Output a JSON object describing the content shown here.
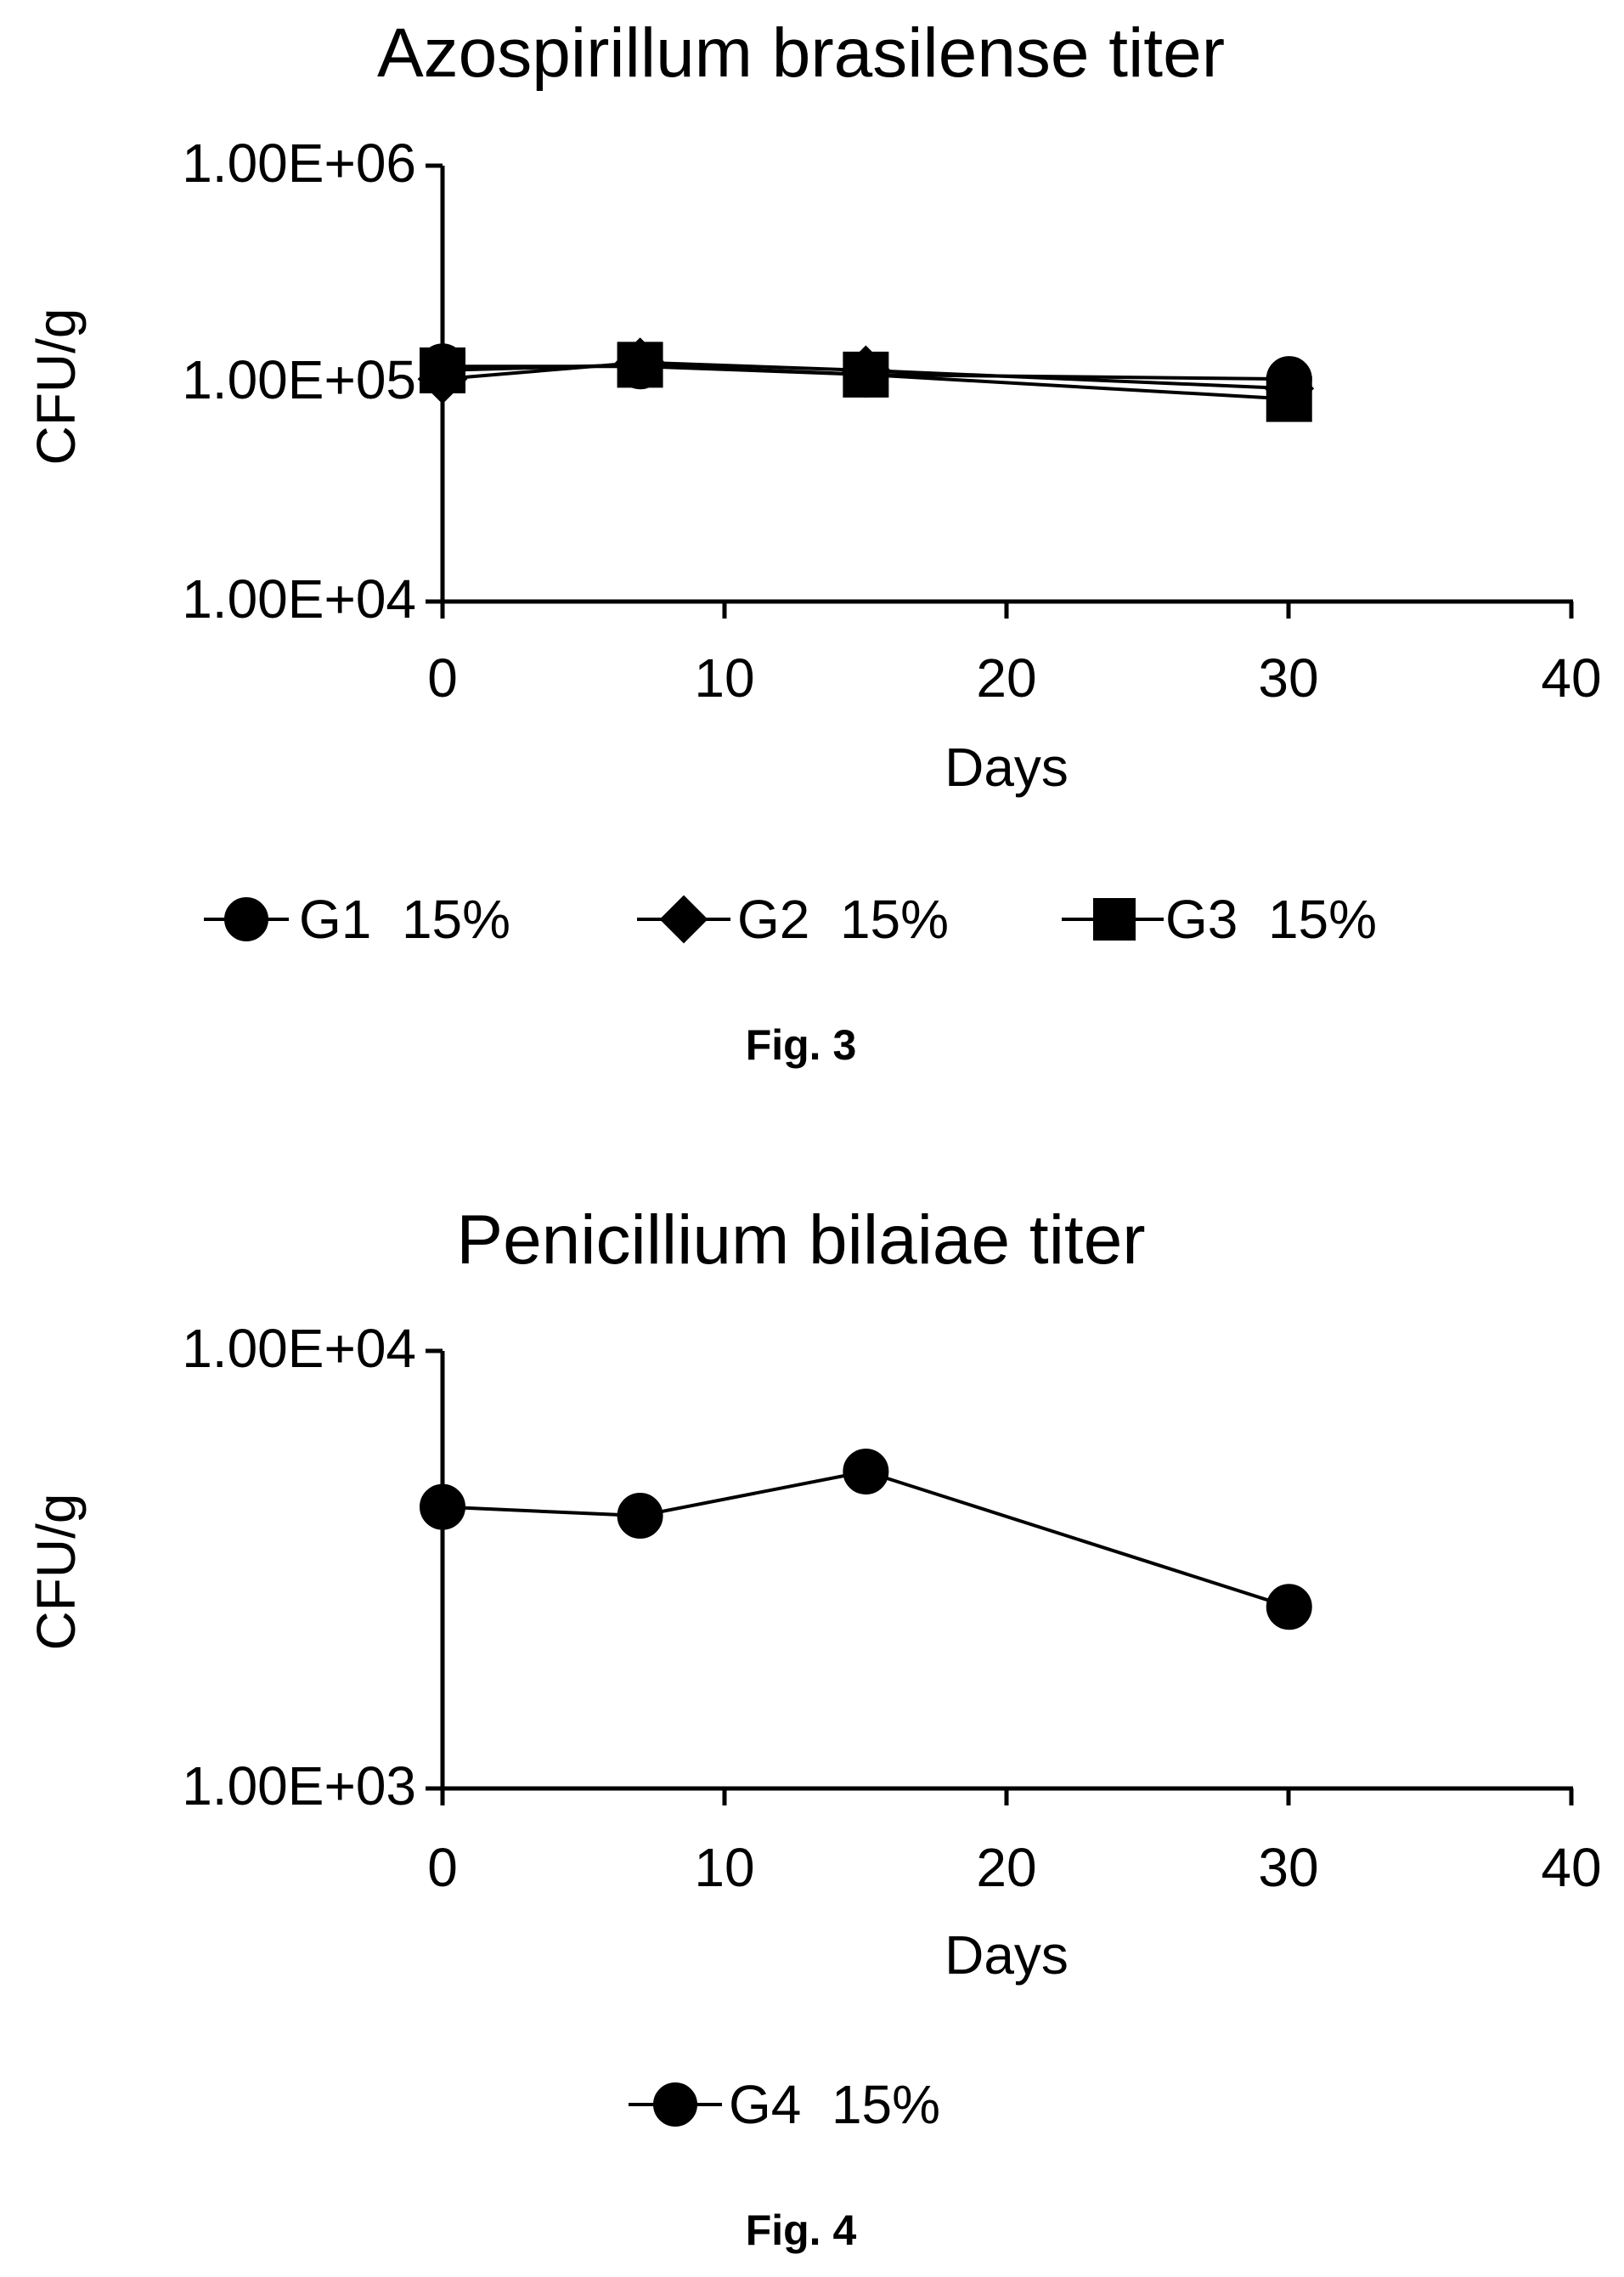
{
  "chart_data": [
    {
      "type": "line",
      "title": "Azospirillum brasilense titer",
      "xlabel": "Days",
      "ylabel": "CFU/g",
      "xlim": [
        0,
        40
      ],
      "x_ticks": [
        "0",
        "10",
        "20",
        "30",
        "40"
      ],
      "ylim": [
        10000,
        1000000
      ],
      "y_scale": "log",
      "y_ticks": [
        "1.00E+04",
        "1.00E+05",
        "1.00E+06"
      ],
      "grid": false,
      "legend_position": "bottom",
      "caption": "Fig. 3",
      "series": [
        {
          "name": "G1  15%",
          "marker": "circle",
          "x": [
            0,
            7,
            15,
            30
          ],
          "y": [
            120000,
            120000,
            110000,
            105000
          ]
        },
        {
          "name": "G2  15%",
          "marker": "diamond",
          "x": [
            0,
            7,
            15,
            30
          ],
          "y": [
            105000,
            125000,
            115000,
            95000
          ]
        },
        {
          "name": "G3  15%",
          "marker": "square",
          "x": [
            0,
            7,
            15,
            30
          ],
          "y": [
            115000,
            122000,
            110000,
            85000
          ]
        }
      ]
    },
    {
      "type": "line",
      "title": "Penicillium bilaiae titer",
      "xlabel": "Days",
      "ylabel": "CFU/g",
      "xlim": [
        0,
        40
      ],
      "x_ticks": [
        "0",
        "10",
        "20",
        "30",
        "40"
      ],
      "ylim": [
        1000,
        10000
      ],
      "y_scale": "log",
      "y_ticks": [
        "1.00E+03",
        "1.00E+04"
      ],
      "grid": false,
      "legend_position": "bottom",
      "caption": "Fig. 4",
      "series": [
        {
          "name": "G4  15%",
          "marker": "circle",
          "x": [
            0,
            7,
            15,
            30
          ],
          "y": [
            4400,
            4200,
            5300,
            2600
          ]
        }
      ]
    }
  ]
}
